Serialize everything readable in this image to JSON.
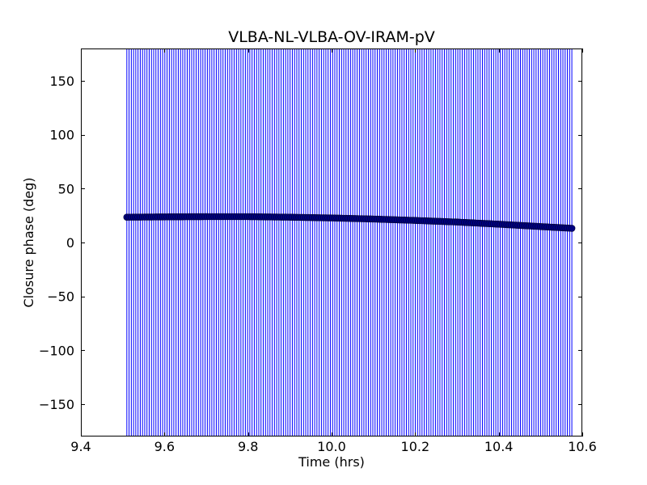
{
  "chart_data": {
    "type": "scatter",
    "title": "VLBA-NL-VLBA-OV-IRAM-pV",
    "xlabel": "Time (hrs)",
    "ylabel": "Closure phase (deg)",
    "xlim": [
      9.4,
      10.6
    ],
    "ylim": [
      -180,
      180
    ],
    "xticks": [
      9.4,
      9.6,
      9.8,
      10.0,
      10.2,
      10.4,
      10.6
    ],
    "xtick_labels": [
      "9.4",
      "9.6",
      "9.8",
      "10.0",
      "10.2",
      "10.4",
      "10.6"
    ],
    "yticks": [
      -150,
      -100,
      -50,
      0,
      50,
      100,
      150
    ],
    "ytick_labels": [
      "−150",
      "−100",
      "−50",
      "0",
      "50",
      "100",
      "150"
    ],
    "grid": false,
    "series": [
      {
        "marker": "circle",
        "marker_color": "#00007f",
        "errorbar_color": "#0000ff",
        "errorbar_value": 180,
        "x_start": 9.51,
        "x_end": 10.575,
        "y_points": [
          {
            "x": 9.51,
            "y": 23.5
          },
          {
            "x": 9.6,
            "y": 23.8
          },
          {
            "x": 9.7,
            "y": 24.0
          },
          {
            "x": 9.8,
            "y": 24.0
          },
          {
            "x": 9.9,
            "y": 23.5
          },
          {
            "x": 10.0,
            "y": 22.8
          },
          {
            "x": 10.1,
            "y": 21.8
          },
          {
            "x": 10.2,
            "y": 20.5
          },
          {
            "x": 10.3,
            "y": 19.0
          },
          {
            "x": 10.4,
            "y": 17.0
          },
          {
            "x": 10.5,
            "y": 14.8
          },
          {
            "x": 10.575,
            "y": 13.2
          }
        ]
      }
    ]
  }
}
